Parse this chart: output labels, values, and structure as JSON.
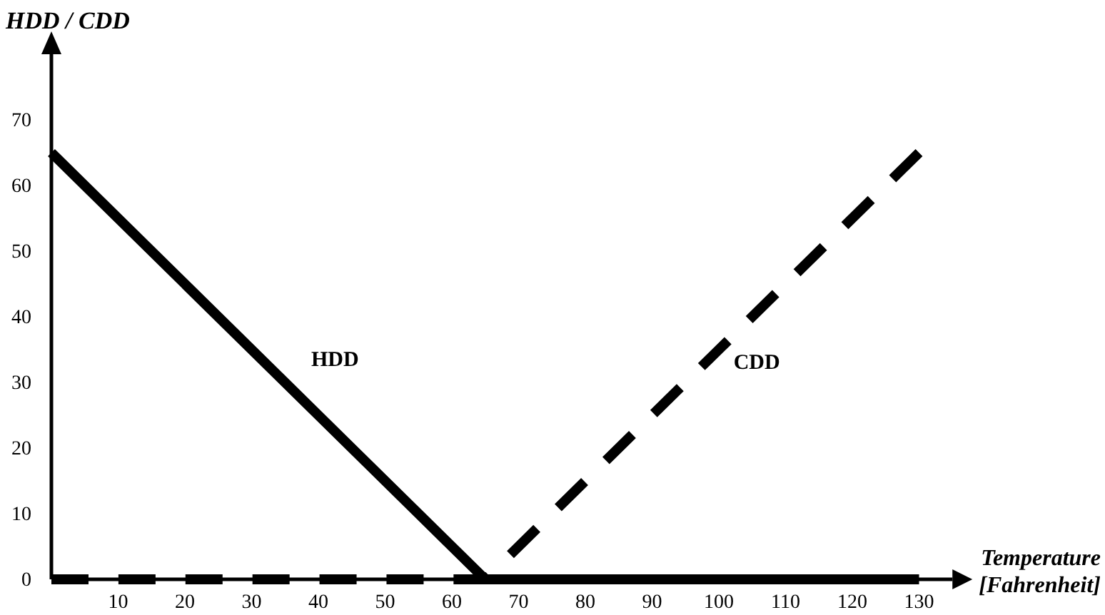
{
  "chart_data": {
    "type": "line",
    "ylabel": "HDD / CDD",
    "xlabel": "Temperature [Fahrenheit]",
    "xlim": [
      0,
      135
    ],
    "ylim": [
      0,
      80
    ],
    "xticks": [
      10,
      20,
      30,
      40,
      50,
      60,
      70,
      80,
      90,
      100,
      110,
      120,
      130
    ],
    "yticks": [
      0,
      10,
      20,
      30,
      40,
      50,
      60,
      70
    ],
    "grid": false,
    "legend": false,
    "series": [
      {
        "name": "HDD",
        "color": "#000000",
        "line_style": "solid",
        "x": [
          0,
          65,
          130
        ],
        "values": [
          65,
          0,
          0
        ]
      },
      {
        "name": "CDD",
        "color": "#000000",
        "line_style": "dashed",
        "x": [
          0,
          65,
          130
        ],
        "values": [
          0,
          0,
          65
        ]
      }
    ]
  }
}
